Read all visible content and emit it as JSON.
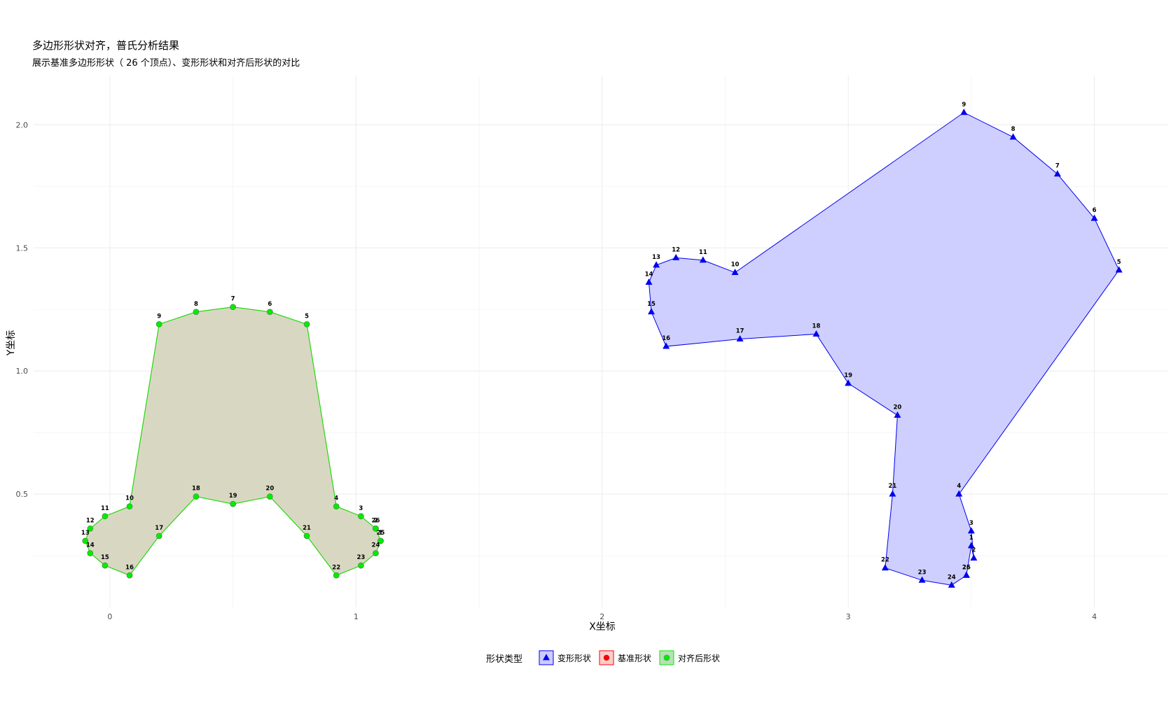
{
  "title": "多边形形状对齐，普氏分析结果",
  "subtitle": "展示基准多边形形状（ 26 个顶点）、变形形状和对齐后形状的对比",
  "chart_data": {
    "type": "scatter",
    "title": "多边形形状对齐，普氏分析结果",
    "subtitle": "展示基准多边形形状（ 26 个顶点）、变形形状和对齐后形状的对比",
    "xlabel": "X坐标",
    "ylabel": "Y坐标",
    "xlim": [
      -0.31,
      4.3
    ],
    "ylim": [
      0.04,
      2.2
    ],
    "xticks": [
      0,
      1,
      2,
      3,
      4
    ],
    "yticks": [
      0.5,
      1.0,
      1.5,
      2.0
    ],
    "xtick_labels": [
      "0",
      "1",
      "2",
      "3",
      "4"
    ],
    "ytick_labels": [
      "0.5",
      "1.0",
      "1.5",
      "2.0"
    ],
    "grid": true,
    "legend": {
      "title": "形状类型",
      "position": "bottom",
      "entries": [
        "变形形状",
        "基准形状",
        "对齐后形状"
      ]
    },
    "series": [
      {
        "name": "变形形状",
        "color": "#0000ee",
        "fill": "#ccccff",
        "marker": "triangle",
        "labels": [
          "1",
          "2",
          "3",
          "4",
          "5",
          "6",
          "7",
          "8",
          "9",
          "10",
          "11",
          "12",
          "13",
          "14",
          "15",
          "16",
          "17",
          "18",
          "19",
          "20",
          "21",
          "22",
          "23",
          "24",
          "25",
          "26"
        ],
        "x": [
          3.5,
          3.51,
          3.5,
          3.45,
          4.1,
          4.0,
          3.85,
          3.67,
          3.47,
          2.54,
          2.41,
          2.3,
          2.22,
          2.19,
          2.2,
          2.26,
          2.56,
          2.87,
          3.0,
          3.2,
          3.18,
          3.15,
          3.3,
          3.42,
          3.48,
          3.48
        ],
        "y": [
          0.29,
          0.24,
          0.35,
          0.5,
          1.41,
          1.62,
          1.8,
          1.95,
          2.05,
          1.4,
          1.45,
          1.46,
          1.43,
          1.36,
          1.24,
          1.1,
          1.13,
          1.15,
          0.95,
          0.82,
          0.5,
          0.2,
          0.15,
          0.13,
          0.17,
          0.17
        ]
      },
      {
        "name": "基准形状",
        "color": "#ff0000",
        "fill": "#ffcccc",
        "marker": "circle",
        "labels": [
          "1",
          "2",
          "3",
          "4",
          "5",
          "6",
          "7",
          "8",
          "9",
          "10",
          "11",
          "12",
          "13",
          "14",
          "15",
          "16",
          "17",
          "18",
          "19",
          "20",
          "21",
          "22",
          "23",
          "24",
          "25",
          "26"
        ],
        "x": [
          1.1,
          1.08,
          1.02,
          0.92,
          0.8,
          0.65,
          0.5,
          0.35,
          0.2,
          0.08,
          -0.02,
          -0.08,
          -0.1,
          -0.08,
          -0.02,
          0.08,
          0.2,
          0.35,
          0.5,
          0.65,
          0.8,
          0.92,
          1.02,
          1.08,
          1.1,
          1.08
        ],
        "y": [
          0.31,
          0.36,
          0.41,
          0.45,
          1.19,
          1.24,
          1.26,
          1.24,
          1.19,
          0.45,
          0.41,
          0.36,
          0.31,
          0.26,
          0.21,
          0.17,
          0.33,
          0.49,
          0.46,
          0.49,
          0.33,
          0.17,
          0.21,
          0.26,
          0.31,
          0.36
        ]
      },
      {
        "name": "对齐后形状",
        "color": "#00ee00",
        "fill": "#b8e0b8",
        "marker": "diamond",
        "labels": [
          "1",
          "2",
          "3",
          "4",
          "5",
          "6",
          "7",
          "8",
          "9",
          "10",
          "11",
          "12",
          "13",
          "14",
          "15",
          "16",
          "17",
          "18",
          "19",
          "20",
          "21",
          "22",
          "23",
          "24",
          "25",
          "26"
        ],
        "x": [
          1.1,
          1.08,
          1.02,
          0.92,
          0.8,
          0.65,
          0.5,
          0.35,
          0.2,
          0.08,
          -0.02,
          -0.08,
          -0.1,
          -0.08,
          -0.02,
          0.08,
          0.2,
          0.35,
          0.5,
          0.65,
          0.8,
          0.92,
          1.02,
          1.08,
          1.1,
          1.08
        ],
        "y": [
          0.31,
          0.36,
          0.41,
          0.45,
          1.19,
          1.24,
          1.26,
          1.24,
          1.19,
          0.45,
          0.41,
          0.36,
          0.31,
          0.26,
          0.21,
          0.17,
          0.33,
          0.49,
          0.46,
          0.49,
          0.33,
          0.17,
          0.21,
          0.26,
          0.31,
          0.36
        ]
      }
    ]
  }
}
